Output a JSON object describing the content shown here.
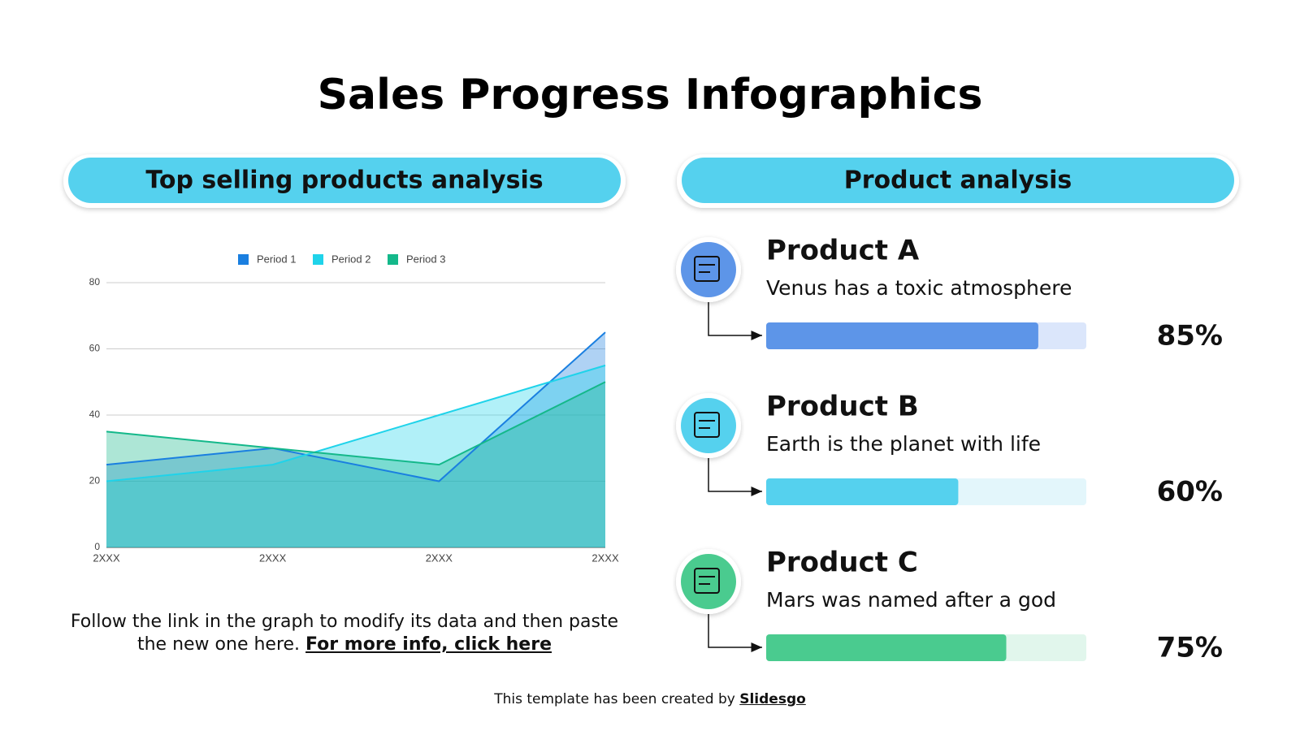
{
  "title": "Sales Progress Infographics",
  "left_header": "Top selling products analysis",
  "right_header": "Product analysis",
  "note": {
    "text": "Follow the link in the graph to modify its data and then paste the new one here.",
    "link": "For more info, click here"
  },
  "footer": {
    "text": "This template has been created by",
    "link": "Slidesgo"
  },
  "chart_data": [
    {
      "type": "area",
      "categories": [
        "2XXX",
        "2XXX",
        "2XXX",
        "2XXX"
      ],
      "series": [
        {
          "name": "Period 1",
          "color": "#1a7fe0",
          "values": [
            25,
            30,
            20,
            65
          ]
        },
        {
          "name": "Period 2",
          "color": "#1fd3ea",
          "values": [
            20,
            25,
            40,
            55
          ]
        },
        {
          "name": "Period 3",
          "color": "#14b88a",
          "values": [
            35,
            30,
            25,
            50
          ]
        }
      ],
      "ylim": [
        0,
        80
      ],
      "yticks": [
        0,
        20,
        40,
        60,
        80
      ],
      "grid": true,
      "legend": "top"
    },
    {
      "type": "progress",
      "categories": [
        "Product A",
        "Product B",
        "Product C"
      ],
      "descriptions": [
        "Venus has a toxic atmosphere",
        "Earth is the planet with life",
        "Mars was named after a god"
      ],
      "values": [
        85,
        60,
        75
      ],
      "value_labels": [
        "85%",
        "60%",
        "75%"
      ],
      "colors": [
        "#5d95e8",
        "#55d1ee",
        "#4acb8f"
      ],
      "track_colors": [
        "#dbe6fb",
        "#e3f6fb",
        "#e1f6ec"
      ],
      "xlim": [
        0,
        100
      ]
    }
  ]
}
